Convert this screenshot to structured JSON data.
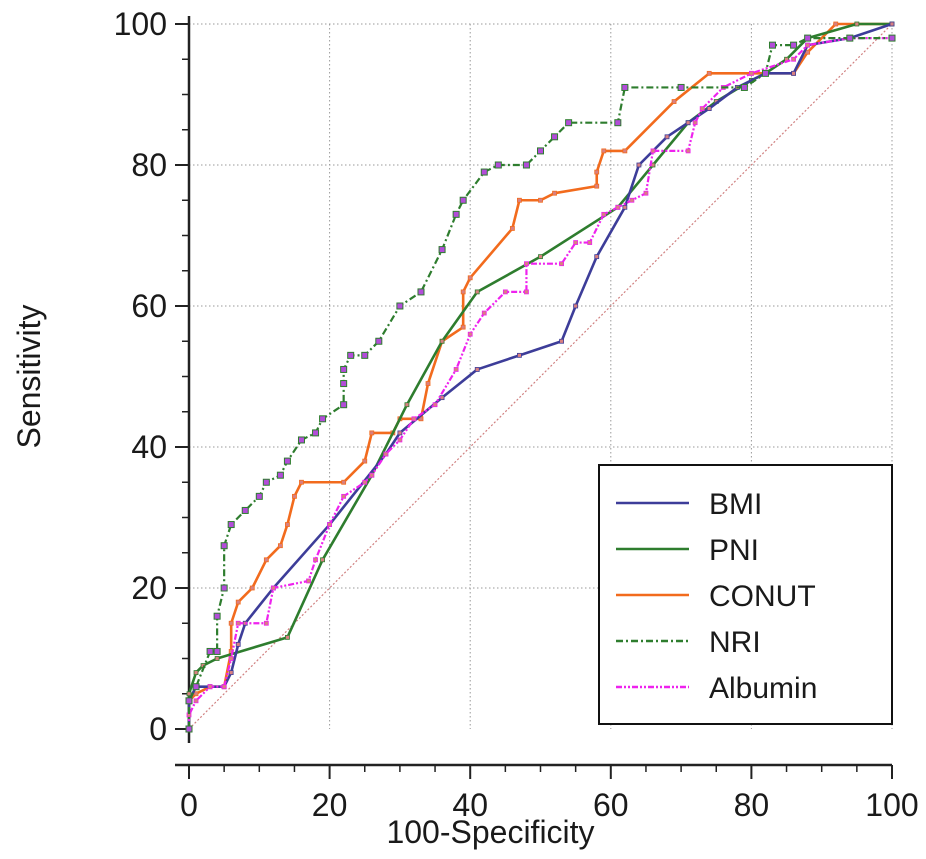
{
  "chart_data": {
    "type": "line",
    "title": "",
    "xlabel": "100-Specificity",
    "ylabel": "Sensitivity",
    "xlim": [
      0,
      100
    ],
    "ylim": [
      0,
      100
    ],
    "x_ticks": [
      "0",
      "20",
      "40",
      "60",
      "80",
      "100"
    ],
    "y_ticks": [
      "0",
      "20",
      "40",
      "60",
      "80",
      "100"
    ],
    "grid": true,
    "legend_position": "bottom-right",
    "diagonal_reference": true,
    "series": [
      {
        "name": "BMI",
        "color": "#3d3d99",
        "style": "solid",
        "points": [
          [
            0,
            0
          ],
          [
            0,
            4
          ],
          [
            1,
            6
          ],
          [
            3,
            6
          ],
          [
            5,
            6
          ],
          [
            6,
            8
          ],
          [
            7,
            12
          ],
          [
            8,
            15
          ],
          [
            12,
            20
          ],
          [
            20,
            29
          ],
          [
            28,
            39
          ],
          [
            30,
            42
          ],
          [
            36,
            47
          ],
          [
            41,
            51
          ],
          [
            47,
            53
          ],
          [
            53,
            55
          ],
          [
            55,
            60
          ],
          [
            58,
            67
          ],
          [
            62,
            74
          ],
          [
            64,
            80
          ],
          [
            68,
            84
          ],
          [
            71,
            86
          ],
          [
            74,
            88
          ],
          [
            78,
            91
          ],
          [
            82,
            93
          ],
          [
            86,
            93
          ],
          [
            88,
            97
          ],
          [
            94,
            98
          ],
          [
            100,
            100
          ]
        ]
      },
      {
        "name": "PNI",
        "color": "#2e7d2e",
        "style": "solid",
        "points": [
          [
            0,
            0
          ],
          [
            0,
            5
          ],
          [
            1,
            8
          ],
          [
            2,
            9
          ],
          [
            4,
            10
          ],
          [
            14,
            13
          ],
          [
            19,
            24
          ],
          [
            26,
            36
          ],
          [
            31,
            46
          ],
          [
            36,
            55
          ],
          [
            41,
            62
          ],
          [
            50,
            67
          ],
          [
            61,
            74
          ],
          [
            66,
            80
          ],
          [
            71,
            86
          ],
          [
            75,
            89
          ],
          [
            80,
            92
          ],
          [
            82,
            93
          ],
          [
            85,
            95
          ],
          [
            88,
            98
          ],
          [
            95,
            100
          ],
          [
            100,
            100
          ]
        ]
      },
      {
        "name": "CONUT",
        "color": "#f26b1d",
        "style": "solid",
        "points": [
          [
            0,
            0
          ],
          [
            0,
            4
          ],
          [
            1,
            5
          ],
          [
            3,
            6
          ],
          [
            5,
            6
          ],
          [
            6,
            11
          ],
          [
            6,
            15
          ],
          [
            7,
            18
          ],
          [
            9,
            20
          ],
          [
            11,
            24
          ],
          [
            13,
            26
          ],
          [
            14,
            29
          ],
          [
            15,
            33
          ],
          [
            16,
            35
          ],
          [
            22,
            35
          ],
          [
            25,
            38
          ],
          [
            26,
            42
          ],
          [
            29,
            42
          ],
          [
            30,
            44
          ],
          [
            33,
            44
          ],
          [
            34,
            49
          ],
          [
            36,
            55
          ],
          [
            39,
            57
          ],
          [
            39,
            62
          ],
          [
            40,
            64
          ],
          [
            46,
            71
          ],
          [
            47,
            75
          ],
          [
            50,
            75
          ],
          [
            52,
            76
          ],
          [
            58,
            77
          ],
          [
            58,
            79
          ],
          [
            59,
            82
          ],
          [
            62,
            82
          ],
          [
            69,
            89
          ],
          [
            74,
            93
          ],
          [
            80,
            93
          ],
          [
            86,
            93
          ],
          [
            88,
            96
          ],
          [
            92,
            100
          ],
          [
            100,
            100
          ]
        ]
      },
      {
        "name": "NRI",
        "color": "#2e7d2e",
        "style": "dashdot",
        "points": [
          [
            0,
            0
          ],
          [
            0,
            4
          ],
          [
            1,
            6
          ],
          [
            3,
            11
          ],
          [
            4,
            11
          ],
          [
            4,
            16
          ],
          [
            5,
            20
          ],
          [
            5,
            26
          ],
          [
            6,
            29
          ],
          [
            8,
            31
          ],
          [
            10,
            33
          ],
          [
            11,
            35
          ],
          [
            13,
            36
          ],
          [
            14,
            38
          ],
          [
            16,
            41
          ],
          [
            18,
            42
          ],
          [
            19,
            44
          ],
          [
            22,
            46
          ],
          [
            22,
            49
          ],
          [
            22,
            51
          ],
          [
            23,
            53
          ],
          [
            25,
            53
          ],
          [
            27,
            55
          ],
          [
            30,
            60
          ],
          [
            33,
            62
          ],
          [
            36,
            68
          ],
          [
            38,
            73
          ],
          [
            39,
            75
          ],
          [
            42,
            79
          ],
          [
            44,
            80
          ],
          [
            48,
            80
          ],
          [
            50,
            82
          ],
          [
            52,
            84
          ],
          [
            54,
            86
          ],
          [
            61,
            86
          ],
          [
            62,
            91
          ],
          [
            70,
            91
          ],
          [
            79,
            91
          ],
          [
            82,
            93
          ],
          [
            83,
            97
          ],
          [
            86,
            97
          ],
          [
            88,
            98
          ],
          [
            94,
            98
          ],
          [
            100,
            98
          ]
        ]
      },
      {
        "name": "Albumin",
        "color": "#ee22ee",
        "style": "dashdotdot",
        "points": [
          [
            0,
            0
          ],
          [
            0,
            2
          ],
          [
            1,
            4
          ],
          [
            3,
            6
          ],
          [
            5,
            6
          ],
          [
            6,
            10
          ],
          [
            7,
            15
          ],
          [
            11,
            15
          ],
          [
            12,
            20
          ],
          [
            17,
            21
          ],
          [
            18,
            24
          ],
          [
            20,
            29
          ],
          [
            22,
            33
          ],
          [
            25,
            35
          ],
          [
            26,
            36
          ],
          [
            28,
            39
          ],
          [
            30,
            41
          ],
          [
            32,
            44
          ],
          [
            35,
            46
          ],
          [
            38,
            51
          ],
          [
            40,
            56
          ],
          [
            42,
            59
          ],
          [
            45,
            62
          ],
          [
            48,
            62
          ],
          [
            48,
            66
          ],
          [
            53,
            66
          ],
          [
            55,
            69
          ],
          [
            57,
            69
          ],
          [
            59,
            73
          ],
          [
            61,
            74
          ],
          [
            63,
            75
          ],
          [
            65,
            76
          ],
          [
            66,
            82
          ],
          [
            71,
            82
          ],
          [
            72,
            86
          ],
          [
            73,
            88
          ],
          [
            76,
            91
          ],
          [
            80,
            93
          ],
          [
            86,
            95
          ],
          [
            88,
            97
          ],
          [
            94,
            98
          ],
          [
            100,
            98
          ]
        ]
      }
    ]
  }
}
